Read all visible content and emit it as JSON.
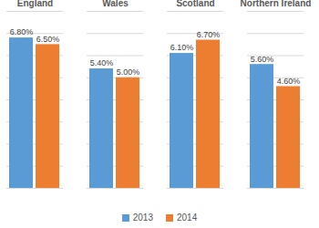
{
  "chart_data": {
    "type": "bar",
    "categories": [
      "England",
      "Wales",
      "Scotland",
      "Northern Ireland"
    ],
    "series": [
      {
        "name": "2013",
        "color": "#5b9bd5",
        "values": [
          6.8,
          5.4,
          6.1,
          5.6
        ],
        "value_labels": [
          "6.80%",
          "5.40%",
          "6.10%",
          "5.60%"
        ]
      },
      {
        "name": "2014",
        "color": "#ed7d31",
        "values": [
          6.5,
          5.0,
          6.7,
          4.6
        ],
        "value_labels": [
          "6.50%",
          "5.00%",
          "6.70%",
          "4.60%"
        ]
      }
    ],
    "ylim": [
      0,
      8
    ],
    "yticks": [
      0,
      1,
      2,
      3,
      4,
      5,
      6,
      7,
      8
    ],
    "grid": true,
    "legend": "bottom",
    "data_labels": true,
    "tick_labels": "x"
  }
}
